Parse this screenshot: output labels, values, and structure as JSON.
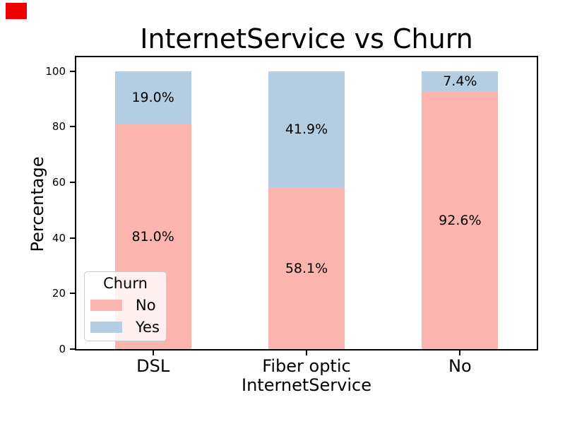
{
  "figure": {
    "background": "#ffffff",
    "marker_color": "#ee0000"
  },
  "chart_data": {
    "type": "bar",
    "stacked": true,
    "title": "InternetService vs Churn",
    "xlabel": "InternetService",
    "ylabel": "Percentage",
    "categories": [
      "DSL",
      "Fiber optic",
      "No"
    ],
    "series": [
      {
        "name": "No",
        "color": "#fbb4ae",
        "values": [
          81.0,
          58.1,
          92.6
        ],
        "labels": [
          "81.0%",
          "58.1%",
          "92.6%"
        ]
      },
      {
        "name": "Yes",
        "color": "#b3cde3",
        "values": [
          19.0,
          41.9,
          7.4
        ],
        "labels": [
          "19.0%",
          "41.9%",
          "7.4%"
        ]
      }
    ],
    "y_ticks": [
      "0",
      "20",
      "40",
      "60",
      "80",
      "100"
    ],
    "ylim": [
      0,
      105
    ],
    "grid": false,
    "axis_color": "#000000",
    "text_color": "#000000",
    "legend": {
      "title": "Churn",
      "position": "lower left",
      "entries": [
        "No",
        "Yes"
      ]
    }
  }
}
